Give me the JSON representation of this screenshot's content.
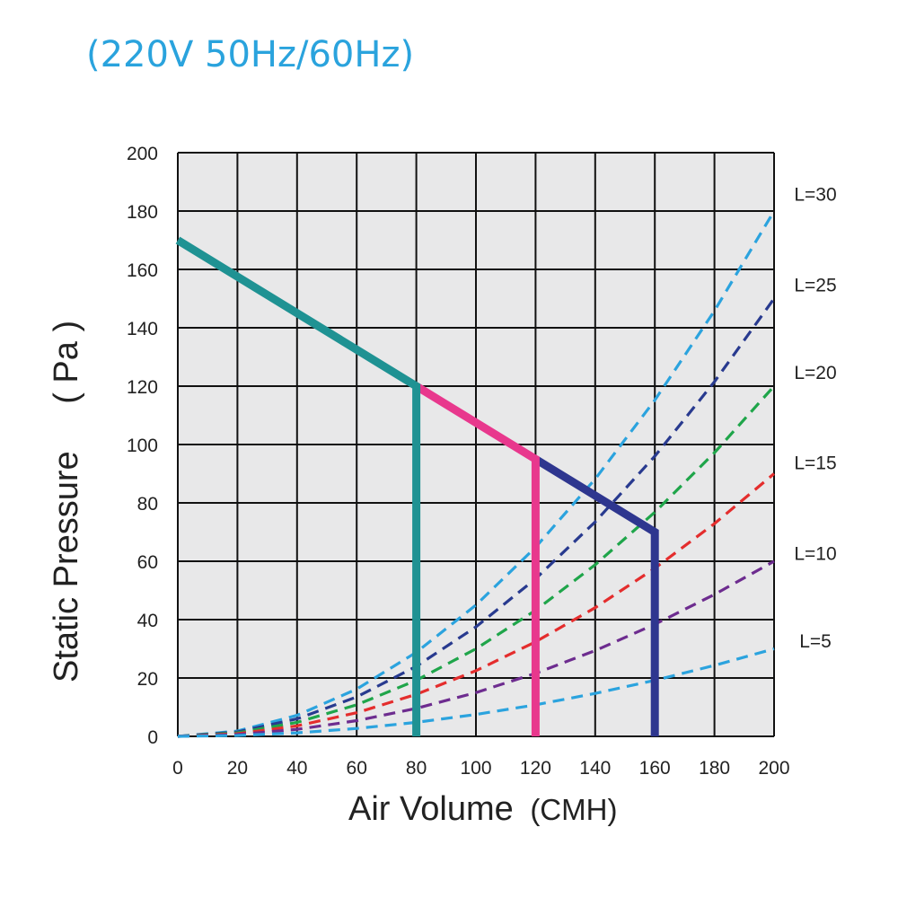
{
  "chart_data": {
    "type": "line",
    "title": "(220V 50Hz/60Hz)",
    "xlabel": "Air Volume",
    "xunit": "(CMH)",
    "ylabel": "Static Pressure",
    "yunit": "( Pa )",
    "xlim": [
      0,
      200
    ],
    "ylim": [
      0,
      200
    ],
    "xticks": [
      0,
      20,
      40,
      60,
      80,
      100,
      120,
      140,
      160,
      180,
      200
    ],
    "yticks": [
      0,
      20,
      40,
      60,
      80,
      100,
      120,
      140,
      160,
      180,
      200
    ],
    "grid": true,
    "colors": {
      "plot_background": "#e8e8e9",
      "grid": "#111111",
      "title": "#2aa3dd"
    },
    "fan_curves": [
      {
        "color": "#2e368f",
        "points": [
          [
            120,
            95
          ],
          [
            160,
            70
          ],
          [
            160,
            0
          ]
        ]
      },
      {
        "color": "#e8388d",
        "points": [
          [
            80,
            120
          ],
          [
            120,
            95
          ],
          [
            120,
            0
          ]
        ]
      },
      {
        "color": "#1f9293",
        "points": [
          [
            0,
            170
          ],
          [
            80,
            120
          ],
          [
            80,
            0
          ]
        ]
      }
    ],
    "system_curves": [
      {
        "label": "L=30",
        "color": "#2ba3de",
        "x": [
          0,
          20,
          40,
          60,
          80,
          100,
          120,
          140,
          160,
          180,
          200
        ],
        "y": [
          0,
          1.8,
          7.2,
          16.2,
          28.8,
          45,
          64.8,
          88.2,
          115.2,
          145.8,
          180
        ]
      },
      {
        "label": "L=25",
        "color": "#283a8f",
        "x": [
          0,
          20,
          40,
          60,
          80,
          100,
          120,
          140,
          160,
          180,
          200
        ],
        "y": [
          0,
          1.5,
          6,
          13.5,
          24,
          37.5,
          54,
          73.5,
          96,
          121.5,
          150
        ]
      },
      {
        "label": "L=20",
        "color": "#1fa54a",
        "x": [
          0,
          20,
          40,
          60,
          80,
          100,
          120,
          140,
          160,
          180,
          200
        ],
        "y": [
          0,
          1.2,
          4.8,
          10.8,
          19.2,
          30,
          43.2,
          58.8,
          76.8,
          97.2,
          120
        ]
      },
      {
        "label": "L=15",
        "color": "#e42d2d",
        "x": [
          0,
          20,
          40,
          60,
          80,
          100,
          120,
          140,
          160,
          180,
          200
        ],
        "y": [
          0,
          0.9,
          3.6,
          8.1,
          14.4,
          22.5,
          32.4,
          44.1,
          57.6,
          72.9,
          90
        ]
      },
      {
        "label": "L=10",
        "color": "#6d2c8f",
        "x": [
          0,
          20,
          40,
          60,
          80,
          100,
          120,
          140,
          160,
          180,
          200
        ],
        "y": [
          0,
          0.6,
          2.4,
          5.4,
          9.6,
          15,
          21.6,
          29.4,
          38.4,
          48.6,
          60
        ]
      },
      {
        "label": "L=5",
        "color": "#2ba3de",
        "x": [
          0,
          20,
          40,
          60,
          80,
          100,
          120,
          140,
          160,
          180,
          200
        ],
        "y": [
          0,
          0.3,
          1.2,
          2.7,
          4.8,
          7.5,
          10.8,
          14.7,
          19.2,
          24.3,
          30
        ]
      }
    ],
    "label_positions_data": [
      {
        "label": "L=30",
        "y": 186
      },
      {
        "label": "L=25",
        "y": 155
      },
      {
        "label": "L=20",
        "y": 125
      },
      {
        "label": "L=15",
        "y": 94
      },
      {
        "label": "L=10",
        "y": 63
      },
      {
        "label": "L=5",
        "y": 33
      }
    ]
  }
}
